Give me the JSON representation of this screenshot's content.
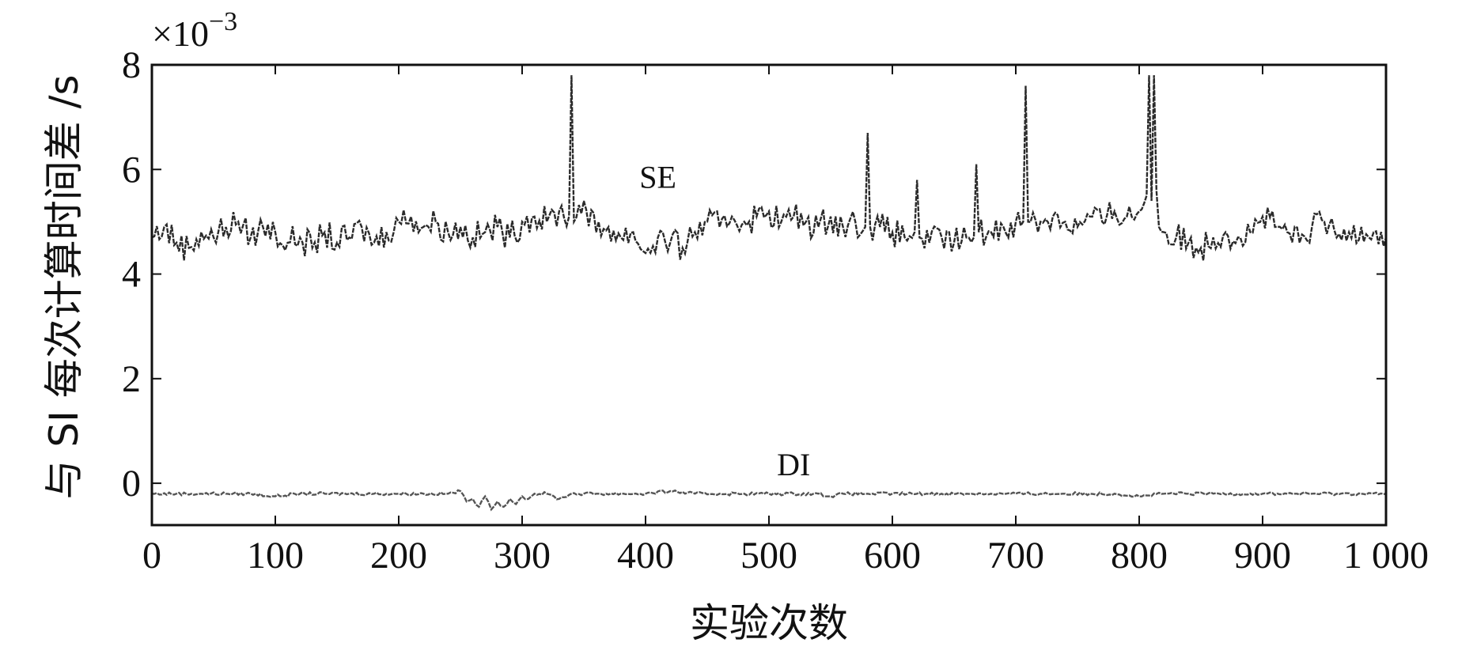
{
  "chart_data": {
    "type": "line",
    "xlabel": "实验次数",
    "ylabel": "与 SI 每次计算时间差 /s",
    "y_multiplier": {
      "base": "×10",
      "exponent": "−3"
    },
    "xlim": [
      0,
      1000
    ],
    "ylim": [
      -0.8,
      8
    ],
    "x_ticks": [
      0,
      100,
      200,
      300,
      400,
      500,
      600,
      700,
      800,
      900,
      1000
    ],
    "x_tick_labels": [
      "0",
      "100",
      "200",
      "300",
      "400",
      "500",
      "600",
      "700",
      "800",
      "900",
      "1 000"
    ],
    "y_ticks": [
      0,
      2,
      4,
      6,
      8
    ],
    "y_tick_labels": [
      "0",
      "2",
      "4",
      "6",
      "8"
    ],
    "grid": false,
    "series": [
      {
        "name": "SE",
        "color": "#2b2b2b",
        "x": [
          0,
          10,
          20,
          30,
          40,
          50,
          60,
          70,
          80,
          90,
          100,
          110,
          120,
          130,
          140,
          150,
          160,
          170,
          180,
          190,
          200,
          210,
          220,
          230,
          240,
          250,
          260,
          270,
          280,
          290,
          300,
          310,
          320,
          330,
          338,
          340,
          342,
          350,
          360,
          370,
          380,
          390,
          400,
          410,
          420,
          430,
          440,
          450,
          460,
          470,
          480,
          490,
          500,
          510,
          520,
          530,
          540,
          550,
          560,
          570,
          578,
          580,
          582,
          590,
          600,
          610,
          618,
          620,
          622,
          630,
          640,
          650,
          660,
          666,
          668,
          670,
          680,
          690,
          700,
          706,
          708,
          710,
          720,
          730,
          740,
          750,
          760,
          770,
          780,
          790,
          800,
          806,
          808,
          810,
          812,
          814,
          816,
          820,
          830,
          840,
          850,
          860,
          870,
          880,
          890,
          900,
          910,
          920,
          930,
          940,
          950,
          960,
          970,
          980,
          990,
          1000
        ],
        "y": [
          4.7,
          4.9,
          4.6,
          4.5,
          4.8,
          4.7,
          4.9,
          5.0,
          4.7,
          4.9,
          4.8,
          4.6,
          4.7,
          4.5,
          4.8,
          4.6,
          4.7,
          4.9,
          4.6,
          4.8,
          5.0,
          5.1,
          4.9,
          5.0,
          4.8,
          4.9,
          4.7,
          4.8,
          4.9,
          4.7,
          5.0,
          5.1,
          5.0,
          5.2,
          5.1,
          7.8,
          5.0,
          5.4,
          4.8,
          4.9,
          4.7,
          4.8,
          4.4,
          4.7,
          4.6,
          4.5,
          4.8,
          5.0,
          4.9,
          5.1,
          5.0,
          5.1,
          5.2,
          5.0,
          5.1,
          5.0,
          4.9,
          5.1,
          4.9,
          5.0,
          4.9,
          6.7,
          4.9,
          4.9,
          4.8,
          4.7,
          4.8,
          5.8,
          4.7,
          4.6,
          4.7,
          4.6,
          4.7,
          4.7,
          6.1,
          4.8,
          4.8,
          4.9,
          5.0,
          5.0,
          7.6,
          5.0,
          5.0,
          5.1,
          5.0,
          4.9,
          5.1,
          5.0,
          5.2,
          5.1,
          5.2,
          5.5,
          7.8,
          5.4,
          7.8,
          5.6,
          4.9,
          4.8,
          4.7,
          4.6,
          4.5,
          4.7,
          4.8,
          4.7,
          4.8,
          5.1,
          4.9,
          4.8,
          4.6,
          4.9,
          5.0,
          4.7,
          4.8,
          4.9,
          4.8,
          4.7
        ]
      },
      {
        "name": "DI",
        "color": "#555555",
        "x": [
          0,
          20,
          40,
          60,
          80,
          100,
          120,
          140,
          160,
          180,
          200,
          220,
          240,
          250,
          255,
          260,
          265,
          270,
          275,
          280,
          285,
          290,
          295,
          300,
          305,
          310,
          320,
          330,
          340,
          350,
          360,
          380,
          400,
          420,
          440,
          460,
          480,
          500,
          520,
          540,
          550,
          560,
          580,
          600,
          620,
          640,
          660,
          680,
          700,
          720,
          740,
          760,
          780,
          800,
          820,
          840,
          860,
          880,
          900,
          920,
          940,
          960,
          980,
          1000
        ],
        "y": [
          -0.2,
          -0.2,
          -0.2,
          -0.2,
          -0.2,
          -0.25,
          -0.2,
          -0.2,
          -0.2,
          -0.2,
          -0.2,
          -0.2,
          -0.2,
          -0.15,
          -0.35,
          -0.3,
          -0.45,
          -0.25,
          -0.5,
          -0.35,
          -0.45,
          -0.3,
          -0.4,
          -0.25,
          -0.3,
          -0.2,
          -0.2,
          -0.3,
          -0.2,
          -0.2,
          -0.2,
          -0.2,
          -0.2,
          -0.15,
          -0.2,
          -0.2,
          -0.2,
          -0.2,
          -0.2,
          -0.2,
          -0.25,
          -0.2,
          -0.2,
          -0.2,
          -0.2,
          -0.2,
          -0.2,
          -0.2,
          -0.2,
          -0.2,
          -0.2,
          -0.2,
          -0.2,
          -0.25,
          -0.2,
          -0.2,
          -0.2,
          -0.2,
          -0.2,
          -0.2,
          -0.2,
          -0.2,
          -0.2,
          -0.2
        ]
      }
    ],
    "annotations": [
      {
        "text": "SE",
        "x": 410,
        "y": 5.65
      },
      {
        "text": "DI",
        "x": 520,
        "y": 0.15
      }
    ]
  }
}
